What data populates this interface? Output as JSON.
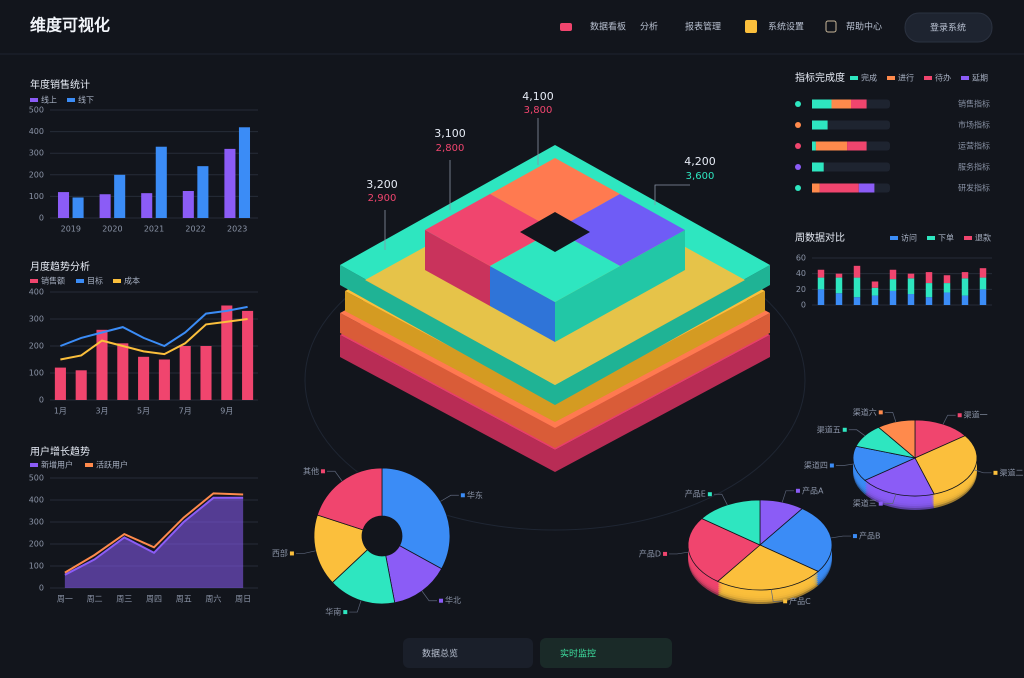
{
  "header": {
    "title": "维度可视化",
    "nav": [
      "数据看板",
      "分析",
      "报表管理",
      "系统设置",
      "帮助中心"
    ],
    "button": "登录系统"
  },
  "center": {
    "callouts": [
      {
        "value": "4,100",
        "sub": "3,800"
      },
      {
        "value": "3,100",
        "sub": "2,800"
      },
      {
        "value": "4,200",
        "sub": "3,600"
      },
      {
        "value": "3,200",
        "sub": "2,900"
      }
    ]
  },
  "footer": {
    "left": "数据总览",
    "right": "实时监控"
  },
  "chart_data": [
    {
      "type": "bar",
      "title": "年度销售统计",
      "categories": [
        "2019",
        "2020",
        "2021",
        "2022",
        "2023"
      ],
      "series": [
        {
          "name": "线上",
          "color": "#8b5cf6",
          "values": [
            120,
            110,
            115,
            125,
            320
          ]
        },
        {
          "name": "线下",
          "color": "#3b8cf6",
          "values": [
            95,
            200,
            330,
            240,
            420
          ]
        }
      ],
      "ylim": [
        0,
        500
      ],
      "yticks": [
        0,
        100,
        200,
        300,
        400,
        500
      ],
      "grid": true
    },
    {
      "type": "combo",
      "title": "月度趋势分析",
      "categories": [
        "1月",
        null,
        "3月",
        null,
        "5月",
        null,
        "7月",
        null,
        "9月",
        null
      ],
      "series": [
        {
          "name": "销售额",
          "type": "bar",
          "color": "#f0456e",
          "values": [
            120,
            110,
            260,
            210,
            160,
            150,
            200,
            200,
            350,
            330
          ]
        },
        {
          "name": "目标",
          "type": "line",
          "color": "#3b8cf6",
          "values": [
            200,
            230,
            250,
            270,
            230,
            200,
            250,
            320,
            330,
            345
          ]
        },
        {
          "name": "成本",
          "type": "line",
          "color": "#fbbf3c",
          "values": [
            150,
            165,
            220,
            200,
            180,
            170,
            210,
            280,
            290,
            300
          ]
        }
      ],
      "ylim": [
        0,
        400
      ],
      "yticks": [
        0,
        100,
        200,
        300,
        400
      ],
      "grid": true
    },
    {
      "type": "area",
      "title": "用户增长趋势",
      "categories": [
        "周一",
        "周二",
        "周三",
        "周四",
        "周五",
        "周六",
        "周日"
      ],
      "series": [
        {
          "name": "新增用户",
          "color": "#8b5cf6",
          "values": [
            60,
            130,
            230,
            160,
            300,
            410,
            410
          ]
        },
        {
          "name": "活跃用户",
          "type": "line",
          "color": "#ff8a4c",
          "values": [
            70,
            150,
            245,
            185,
            320,
            430,
            425
          ]
        }
      ],
      "ylim": [
        0,
        500
      ],
      "yticks": [
        0,
        100,
        200,
        300,
        400,
        500
      ],
      "grid": true
    },
    {
      "type": "donut",
      "categories": [
        "华东",
        "华北",
        "华南",
        "西部",
        "其他"
      ],
      "values": [
        33,
        14,
        16,
        17,
        20
      ],
      "colors": [
        "#3b8cf6",
        "#8b5cf6",
        "#2ee6c0",
        "#fbbf3c",
        "#f0456e"
      ]
    },
    {
      "type": "pie",
      "categories": [
        "产品A",
        "产品B",
        "产品C",
        "产品D",
        "产品E"
      ],
      "values": [
        10,
        25,
        25,
        25,
        15
      ],
      "colors": [
        "#8b5cf6",
        "#3b8cf6",
        "#fbbf3c",
        "#f0456e",
        "#2ee6c0"
      ]
    },
    {
      "type": "pie",
      "categories": [
        "渠道一",
        "渠道二",
        "渠道三",
        "渠道四",
        "渠道五",
        "渠道六"
      ],
      "values": [
        15,
        30,
        20,
        15,
        10,
        10
      ],
      "colors": [
        "#f0456e",
        "#fbbf3c",
        "#8b5cf6",
        "#3b8cf6",
        "#2ee6c0",
        "#ff8a4c"
      ]
    },
    {
      "type": "hbar",
      "title": "指标完成度",
      "categories": [
        "销售指标",
        "市场指标",
        "运营指标",
        "服务指标",
        "研发指标"
      ],
      "series": [
        {
          "name": "完成",
          "color": "#2ee6c0",
          "values": [
            25,
            20,
            5,
            15,
            0
          ]
        },
        {
          "name": "进行",
          "color": "#ff8a4c",
          "values": [
            25,
            0,
            40,
            0,
            10
          ]
        },
        {
          "name": "待办",
          "color": "#f0456e",
          "values": [
            20,
            0,
            25,
            0,
            50
          ]
        },
        {
          "name": "延期",
          "color": "#8b5cf6",
          "values": [
            0,
            0,
            0,
            0,
            20
          ]
        }
      ],
      "xlim": [
        0,
        100
      ]
    },
    {
      "type": "stacked",
      "title": "周数据对比",
      "categories": [
        null,
        null,
        null,
        null,
        null,
        null,
        null,
        null,
        null,
        null
      ],
      "series": [
        {
          "name": "访问",
          "color": "#3b8cf6",
          "values": [
            20,
            15,
            10,
            12,
            18,
            14,
            10,
            16,
            12,
            20
          ]
        },
        {
          "name": "下单",
          "color": "#2ee6c0",
          "values": [
            15,
            20,
            25,
            10,
            15,
            20,
            18,
            12,
            22,
            15
          ]
        },
        {
          "name": "退款",
          "color": "#f0456e",
          "values": [
            10,
            5,
            15,
            8,
            12,
            6,
            14,
            10,
            8,
            12
          ]
        }
      ],
      "ylim": [
        0,
        60
      ],
      "yticks": [
        0,
        20,
        40,
        60
      ],
      "grid": true
    }
  ]
}
